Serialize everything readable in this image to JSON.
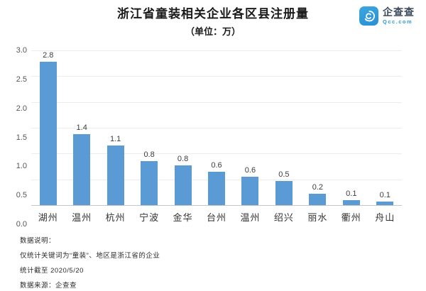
{
  "header": {
    "title": "浙江省童装相关企业各区县注册量",
    "subtitle": "（单位：万）"
  },
  "logo": {
    "name": "企查查",
    "domain": "Qcc.com",
    "brand_color": "#2e9bd6"
  },
  "chart_data": {
    "type": "bar",
    "title": "浙江省童装相关企业各区县注册量",
    "unit_label": "（单位：万）",
    "categories": [
      "湖州",
      "温州",
      "杭州",
      "宁波",
      "金华",
      "台州",
      "温州",
      "绍兴",
      "丽水",
      "衢州",
      "舟山"
    ],
    "values": [
      2.8,
      1.4,
      1.1,
      0.8,
      0.8,
      0.6,
      0.6,
      0.5,
      0.2,
      0.1,
      0.1
    ],
    "bar_heights": [
      2.78,
      1.37,
      1.15,
      0.85,
      0.77,
      0.65,
      0.55,
      0.47,
      0.22,
      0.1,
      0.07
    ],
    "ylim": [
      0,
      3.0
    ],
    "yticks": [
      "3.0",
      "2.5",
      "2.0",
      "1.5",
      "1.0",
      "0.5",
      "0.0"
    ],
    "grid": true,
    "legend": "none",
    "bar_color": "#5B9BD5"
  },
  "footer": {
    "lines": [
      "数据说明：",
      "仅统计关键词为“童装”、地区是浙江省的企业",
      "统计截至 2020/5/20",
      "数据来源：企查查"
    ]
  }
}
